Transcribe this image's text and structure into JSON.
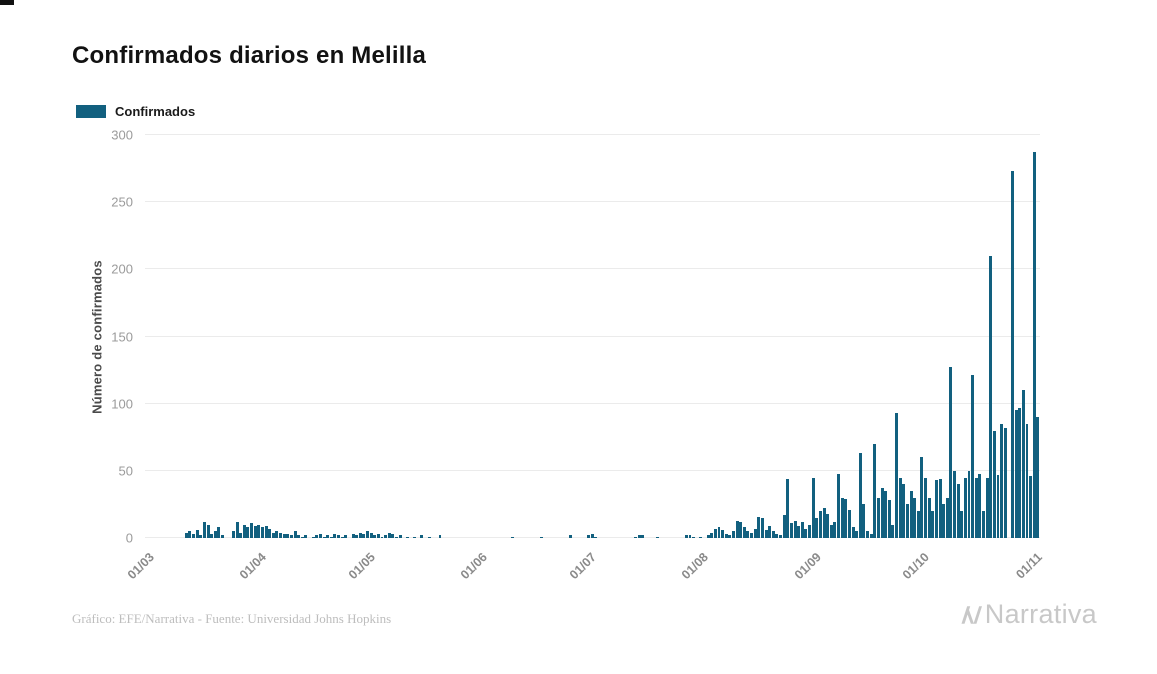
{
  "title": "Confirmados diarios en Melilla",
  "legend": {
    "label": "Confirmados",
    "color": "#12607f"
  },
  "footer": {
    "credit": "Gráfico: EFE/Narrativa - Fuente: Universidad Johns Hopkins",
    "brand": "Narrativa"
  },
  "chart_data": {
    "type": "bar",
    "title": "Confirmados diarios en Melilla",
    "xlabel": "",
    "ylabel": "Número de confirmados",
    "ylim": [
      0,
      300
    ],
    "yticks": [
      0,
      50,
      100,
      150,
      200,
      250,
      300
    ],
    "grid": true,
    "legend_position": "top-left",
    "bar_color": "#12607f",
    "x_tick_labels": [
      "01/03",
      "01/04",
      "01/05",
      "01/06",
      "01/07",
      "01/08",
      "01/09",
      "01/10",
      "01/11"
    ],
    "x_tick_indices": [
      0,
      31,
      61,
      92,
      122,
      153,
      184,
      214,
      245
    ],
    "values": [
      0,
      0,
      0,
      0,
      0,
      0,
      0,
      0,
      0,
      0,
      0,
      4,
      5,
      3,
      6,
      2,
      12,
      10,
      3,
      5,
      8,
      2,
      0,
      0,
      5,
      12,
      4,
      10,
      8,
      11,
      9,
      10,
      8,
      9,
      7,
      4,
      5,
      4,
      3,
      3,
      2,
      5,
      2,
      1,
      2,
      0,
      1,
      2,
      3,
      1,
      2,
      1,
      3,
      2,
      1,
      2,
      0,
      3,
      2,
      4,
      3,
      5,
      4,
      2,
      3,
      1,
      2,
      4,
      3,
      1,
      2,
      0,
      1,
      0,
      1,
      0,
      2,
      0,
      1,
      0,
      0,
      2,
      0,
      0,
      0,
      0,
      0,
      0,
      0,
      0,
      0,
      0,
      0,
      0,
      0,
      0,
      0,
      0,
      0,
      0,
      0,
      1,
      0,
      0,
      0,
      0,
      0,
      0,
      0,
      1,
      0,
      0,
      0,
      0,
      0,
      0,
      0,
      2,
      0,
      0,
      0,
      0,
      2,
      3,
      1,
      0,
      0,
      0,
      0,
      0,
      0,
      0,
      0,
      0,
      0,
      1,
      2,
      2,
      0,
      0,
      0,
      1,
      0,
      0,
      0,
      0,
      0,
      0,
      0,
      2,
      2,
      1,
      0,
      1,
      0,
      2,
      4,
      7,
      8,
      6,
      3,
      2,
      5,
      13,
      12,
      8,
      5,
      4,
      7,
      16,
      15,
      6,
      9,
      5,
      3,
      2,
      17,
      44,
      11,
      13,
      9,
      12,
      7,
      10,
      45,
      15,
      20,
      22,
      18,
      10,
      12,
      48,
      30,
      29,
      21,
      8,
      5,
      63,
      25,
      5,
      3,
      70,
      30,
      37,
      35,
      28,
      10,
      93,
      45,
      40,
      25,
      35,
      30,
      20,
      60,
      45,
      30,
      20,
      43,
      44,
      25,
      30,
      127,
      50,
      40,
      20,
      45,
      50,
      121,
      45,
      48,
      20,
      45,
      210,
      80,
      47,
      85,
      82,
      0,
      273,
      95,
      97,
      110,
      85,
      46,
      287,
      90
    ]
  }
}
